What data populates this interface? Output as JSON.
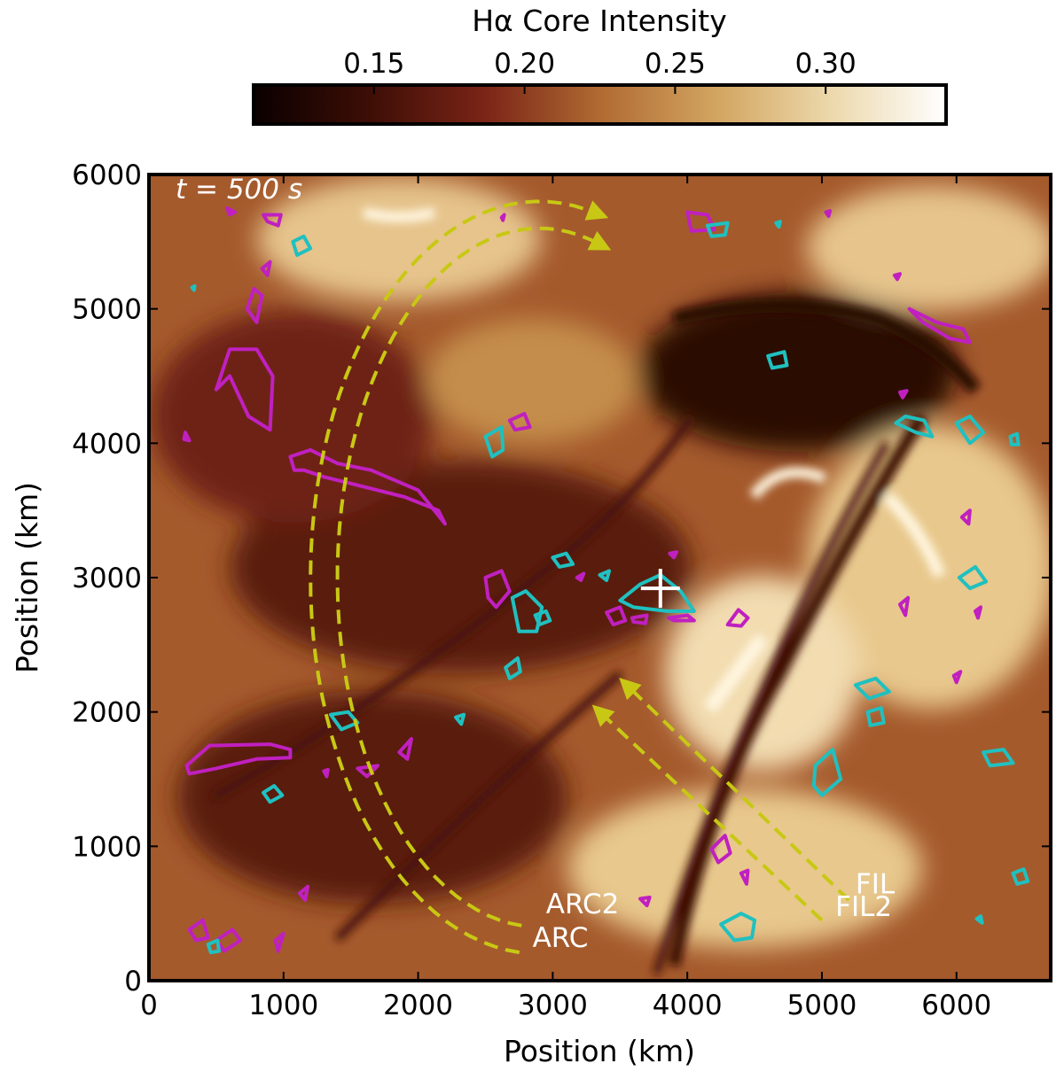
{
  "chart_data": {
    "type": "heatmap",
    "time_label": "t = 500 s",
    "colorbar": {
      "label": "Hα Core Intensity",
      "range": [
        0.11,
        0.34
      ],
      "ticks": [
        0.15,
        0.2,
        0.25,
        0.3
      ],
      "tick_labels": [
        "0.15",
        "0.20",
        "0.25",
        "0.30"
      ],
      "colormap": [
        "#0a0000",
        "#3d0e06",
        "#7a2417",
        "#b06a32",
        "#d2a460",
        "#ecd8ab",
        "#ffffff"
      ]
    },
    "xlabel": "Position (km)",
    "ylabel": "Position (km)",
    "xlim": [
      0,
      6700
    ],
    "ylim": [
      0,
      6000
    ],
    "xticks": [
      0,
      1000,
      2000,
      3000,
      4000,
      5000,
      6000
    ],
    "yticks": [
      0,
      1000,
      2000,
      3000,
      4000,
      5000,
      6000
    ],
    "xtick_labels": [
      "0",
      "1000",
      "2000",
      "3000",
      "4000",
      "5000",
      "6000"
    ],
    "ytick_labels": [
      "0",
      "1000",
      "2000",
      "3000",
      "4000",
      "5000",
      "6000"
    ],
    "colors": {
      "contour_a": "#c020c0",
      "contour_b": "#20c0c0",
      "arrow": "#c8c814",
      "marker": "#ffffff"
    },
    "marker": {
      "x": 3800,
      "y": 2920,
      "symbol": "+"
    },
    "annotations": [
      {
        "text": "ARC2",
        "x": 2950,
        "y": 500
      },
      {
        "text": "ARC",
        "x": 2850,
        "y": 250
      },
      {
        "text": "FIL",
        "x": 5250,
        "y": 650
      },
      {
        "text": "FIL2",
        "x": 5100,
        "y": 480
      }
    ],
    "arcs": [
      {
        "name": "ARC",
        "center": [
          2900,
          3000
        ],
        "radius_x": 1700,
        "radius_y": 2800,
        "theta_start_deg": 265,
        "theta_end_deg": 75
      },
      {
        "name": "ARC2",
        "center": [
          2900,
          3000
        ],
        "radius_x": 1500,
        "radius_y": 2600,
        "theta_start_deg": 265,
        "theta_end_deg": 72
      }
    ],
    "arrows": [
      {
        "name": "FIL",
        "from": [
          5200,
          600
        ],
        "to": [
          3550,
          2200
        ]
      },
      {
        "name": "FIL2",
        "from": [
          5000,
          450
        ],
        "to": [
          3350,
          2000
        ]
      }
    ],
    "contours_magenta": [
      [
        [
          280,
          4060
        ],
        [
          300,
          4020
        ],
        [
          260,
          4030
        ],
        [
          270,
          4080
        ]
      ],
      [
        [
          500,
          4400
        ],
        [
          600,
          4500
        ],
        [
          740,
          4200
        ],
        [
          900,
          4100
        ],
        [
          920,
          4500
        ],
        [
          800,
          4700
        ],
        [
          600,
          4700
        ]
      ],
      [
        [
          730,
          5000
        ],
        [
          780,
          5150
        ],
        [
          840,
          5100
        ],
        [
          800,
          4900
        ]
      ],
      [
        [
          840,
          5300
        ],
        [
          900,
          5350
        ],
        [
          880,
          5250
        ]
      ],
      [
        [
          580,
          5750
        ],
        [
          640,
          5720
        ],
        [
          600,
          5700
        ]
      ],
      [
        [
          850,
          5700
        ],
        [
          980,
          5700
        ],
        [
          960,
          5620
        ],
        [
          880,
          5650
        ]
      ],
      [
        [
          1050,
          3900
        ],
        [
          1200,
          3950
        ],
        [
          1400,
          3850
        ],
        [
          1650,
          3800
        ],
        [
          2000,
          3650
        ],
        [
          2200,
          3400
        ],
        [
          2150,
          3500
        ],
        [
          1900,
          3600
        ],
        [
          1500,
          3700
        ],
        [
          1300,
          3750
        ],
        [
          1150,
          3800
        ],
        [
          1080,
          3800
        ]
      ],
      [
        [
          280,
          1600
        ],
        [
          450,
          1750
        ],
        [
          900,
          1760
        ],
        [
          1050,
          1720
        ],
        [
          1050,
          1660
        ],
        [
          800,
          1650
        ],
        [
          500,
          1580
        ],
        [
          300,
          1540
        ]
      ],
      [
        [
          1550,
          1580
        ],
        [
          1700,
          1600
        ],
        [
          1620,
          1520
        ]
      ],
      [
        [
          1860,
          1700
        ],
        [
          1950,
          1800
        ],
        [
          1920,
          1650
        ]
      ],
      [
        [
          1120,
          650
        ],
        [
          1180,
          700
        ],
        [
          1160,
          600
        ]
      ],
      [
        [
          300,
          380
        ],
        [
          400,
          450
        ],
        [
          440,
          320
        ],
        [
          350,
          300
        ]
      ],
      [
        [
          500,
          300
        ],
        [
          620,
          380
        ],
        [
          680,
          300
        ],
        [
          560,
          220
        ]
      ],
      [
        [
          940,
          300
        ],
        [
          1000,
          350
        ],
        [
          960,
          220
        ]
      ],
      [
        [
          2500,
          3000
        ],
        [
          2620,
          3050
        ],
        [
          2680,
          2900
        ],
        [
          2580,
          2780
        ],
        [
          2520,
          2850
        ]
      ],
      [
        [
          2680,
          4170
        ],
        [
          2790,
          4220
        ],
        [
          2830,
          4120
        ],
        [
          2720,
          4100
        ]
      ],
      [
        [
          3180,
          3000
        ],
        [
          3230,
          3030
        ],
        [
          3210,
          2980
        ]
      ],
      [
        [
          3400,
          2740
        ],
        [
          3500,
          2780
        ],
        [
          3540,
          2680
        ],
        [
          3450,
          2650
        ]
      ],
      [
        [
          3590,
          2700
        ],
        [
          3700,
          2720
        ],
        [
          3690,
          2660
        ],
        [
          3600,
          2670
        ]
      ],
      [
        [
          3860,
          2700
        ],
        [
          4000,
          2720
        ],
        [
          4050,
          2680
        ],
        [
          3900,
          2680
        ]
      ],
      [
        [
          4300,
          2650
        ],
        [
          4380,
          2760
        ],
        [
          4450,
          2700
        ],
        [
          4400,
          2640
        ]
      ],
      [
        [
          3870,
          3180
        ],
        [
          3920,
          3190
        ],
        [
          3900,
          3150
        ]
      ],
      [
        [
          4000,
          5720
        ],
        [
          4150,
          5700
        ],
        [
          4200,
          5590
        ],
        [
          4030,
          5580
        ]
      ],
      [
        [
          2620,
          5680
        ],
        [
          2640,
          5700
        ],
        [
          2630,
          5660
        ]
      ],
      [
        [
          5030,
          5720
        ],
        [
          5060,
          5730
        ],
        [
          5050,
          5690
        ]
      ],
      [
        [
          5540,
          5250
        ],
        [
          5580,
          5260
        ],
        [
          5560,
          5220
        ]
      ],
      [
        [
          5650,
          5000
        ],
        [
          5850,
          4900
        ],
        [
          6050,
          4850
        ],
        [
          6100,
          4750
        ],
        [
          5950,
          4780
        ],
        [
          5750,
          4900
        ]
      ],
      [
        [
          5580,
          4380
        ],
        [
          5630,
          4390
        ],
        [
          5600,
          4340
        ]
      ],
      [
        [
          6040,
          3450
        ],
        [
          6100,
          3500
        ],
        [
          6090,
          3400
        ]
      ],
      [
        [
          5580,
          2800
        ],
        [
          5640,
          2850
        ],
        [
          5620,
          2720
        ]
      ],
      [
        [
          6140,
          2750
        ],
        [
          6180,
          2780
        ],
        [
          6160,
          2700
        ]
      ],
      [
        [
          5980,
          2270
        ],
        [
          6030,
          2300
        ],
        [
          6000,
          2220
        ]
      ],
      [
        [
          4180,
          980
        ],
        [
          4280,
          1080
        ],
        [
          4320,
          950
        ],
        [
          4230,
          880
        ]
      ],
      [
        [
          4400,
          800
        ],
        [
          4450,
          820
        ],
        [
          4440,
          720
        ]
      ],
      [
        [
          3650,
          610
        ],
        [
          3720,
          620
        ],
        [
          3700,
          560
        ]
      ],
      [
        [
          1300,
          1560
        ],
        [
          1330,
          1570
        ],
        [
          1320,
          1520
        ]
      ]
    ],
    "contours_cyan": [
      [
        [
          1070,
          5500
        ],
        [
          1150,
          5540
        ],
        [
          1200,
          5450
        ],
        [
          1100,
          5400
        ]
      ],
      [
        [
          2500,
          4050
        ],
        [
          2620,
          4120
        ],
        [
          2630,
          3950
        ],
        [
          2550,
          3900
        ]
      ],
      [
        [
          2700,
          2850
        ],
        [
          2800,
          2900
        ],
        [
          2920,
          2780
        ],
        [
          2880,
          2600
        ],
        [
          2750,
          2600
        ]
      ],
      [
        [
          2870,
          2720
        ],
        [
          2950,
          2750
        ],
        [
          2980,
          2680
        ],
        [
          2900,
          2650
        ]
      ],
      [
        [
          3000,
          3150
        ],
        [
          3100,
          3180
        ],
        [
          3150,
          3100
        ],
        [
          3050,
          3080
        ]
      ],
      [
        [
          3350,
          3020
        ],
        [
          3420,
          3050
        ],
        [
          3400,
          2980
        ]
      ],
      [
        [
          3500,
          2830
        ],
        [
          3650,
          2950
        ],
        [
          3800,
          3020
        ],
        [
          3950,
          2900
        ],
        [
          4050,
          2750
        ],
        [
          3850,
          2750
        ],
        [
          3600,
          2780
        ]
      ],
      [
        [
          2650,
          2330
        ],
        [
          2740,
          2400
        ],
        [
          2760,
          2300
        ],
        [
          2680,
          2250
        ]
      ],
      [
        [
          2280,
          1960
        ],
        [
          2340,
          1980
        ],
        [
          2320,
          1910
        ]
      ],
      [
        [
          1350,
          1980
        ],
        [
          1480,
          2000
        ],
        [
          1550,
          1920
        ],
        [
          1430,
          1870
        ]
      ],
      [
        [
          850,
          1400
        ],
        [
          930,
          1450
        ],
        [
          990,
          1380
        ],
        [
          900,
          1330
        ]
      ],
      [
        [
          440,
          270
        ],
        [
          510,
          300
        ],
        [
          520,
          220
        ],
        [
          460,
          210
        ]
      ],
      [
        [
          4150,
          5620
        ],
        [
          4300,
          5640
        ],
        [
          4280,
          5550
        ],
        [
          4180,
          5540
        ]
      ],
      [
        [
          4660,
          5640
        ],
        [
          4690,
          5650
        ],
        [
          4680,
          5610
        ]
      ],
      [
        [
          4600,
          4650
        ],
        [
          4720,
          4680
        ],
        [
          4740,
          4580
        ],
        [
          4630,
          4560
        ]
      ],
      [
        [
          5550,
          4150
        ],
        [
          5700,
          4080
        ],
        [
          5820,
          4050
        ],
        [
          5760,
          4170
        ],
        [
          5620,
          4200
        ]
      ],
      [
        [
          6000,
          4150
        ],
        [
          6100,
          4200
        ],
        [
          6200,
          4080
        ],
        [
          6100,
          4000
        ]
      ],
      [
        [
          6400,
          4050
        ],
        [
          6450,
          4070
        ],
        [
          6460,
          3990
        ],
        [
          6410,
          3990
        ]
      ],
      [
        [
          6020,
          3000
        ],
        [
          6140,
          3080
        ],
        [
          6220,
          2970
        ],
        [
          6100,
          2920
        ]
      ],
      [
        [
          5250,
          2200
        ],
        [
          5400,
          2250
        ],
        [
          5500,
          2150
        ],
        [
          5350,
          2100
        ]
      ],
      [
        [
          5340,
          2000
        ],
        [
          5440,
          2030
        ],
        [
          5460,
          1920
        ],
        [
          5360,
          1900
        ]
      ],
      [
        [
          4950,
          1600
        ],
        [
          5080,
          1720
        ],
        [
          5140,
          1500
        ],
        [
          5000,
          1380
        ],
        [
          4940,
          1450
        ]
      ],
      [
        [
          6200,
          1700
        ],
        [
          6350,
          1720
        ],
        [
          6420,
          1620
        ],
        [
          6250,
          1600
        ]
      ],
      [
        [
          6420,
          800
        ],
        [
          6500,
          830
        ],
        [
          6530,
          740
        ],
        [
          6450,
          720
        ]
      ],
      [
        [
          4250,
          420
        ],
        [
          4400,
          500
        ],
        [
          4500,
          450
        ],
        [
          4480,
          320
        ],
        [
          4350,
          300
        ]
      ],
      [
        [
          6150,
          460
        ],
        [
          6180,
          480
        ],
        [
          6190,
          430
        ]
      ],
      [
        [
          320,
          5160
        ],
        [
          340,
          5170
        ],
        [
          335,
          5140
        ]
      ]
    ]
  }
}
